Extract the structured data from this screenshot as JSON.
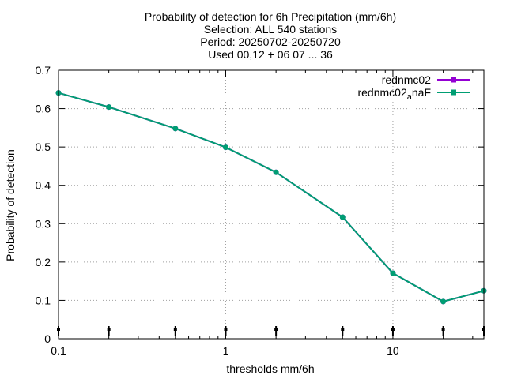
{
  "chart_data": {
    "type": "line",
    "title_lines": [
      "Probability of detection  for 6h Precipitation (mm/6h)",
      "Selection: ALL    540 stations",
      "Period: 20250702-20250720",
      "Used 00,12 + 06 07 ... 36"
    ],
    "xlabel": "thresholds mm/6h",
    "ylabel": "Probability of detection",
    "xscale": "log",
    "xlim": [
      0.1,
      35
    ],
    "ylim": [
      0,
      0.7
    ],
    "x_ticks": [
      0.1,
      1,
      10
    ],
    "x_tick_labels": [
      "0.1",
      "1",
      "10"
    ],
    "y_ticks": [
      0,
      0.1,
      0.2,
      0.3,
      0.4,
      0.5,
      0.6,
      0.7
    ],
    "y_tick_labels": [
      "0",
      "0.1",
      "0.2",
      "0.3",
      "0.4",
      "0.5",
      "0.6",
      "0.7"
    ],
    "grid": true,
    "legend_position": "top-right",
    "x": [
      0.1,
      0.2,
      0.5,
      1,
      2,
      5,
      10,
      20,
      35
    ],
    "series": [
      {
        "name": "rednmc02",
        "color": "#9400d3",
        "values": [
          0.641,
          0.604,
          0.548,
          0.499,
          0.434,
          0.317,
          0.171,
          0.097,
          0.125
        ]
      },
      {
        "name": "rednmc02",
        "name_subscript": "a",
        "name_suffix": "naF",
        "color": "#009e73",
        "values": [
          0.641,
          0.604,
          0.548,
          0.499,
          0.434,
          0.317,
          0.171,
          0.097,
          0.125
        ]
      }
    ]
  }
}
